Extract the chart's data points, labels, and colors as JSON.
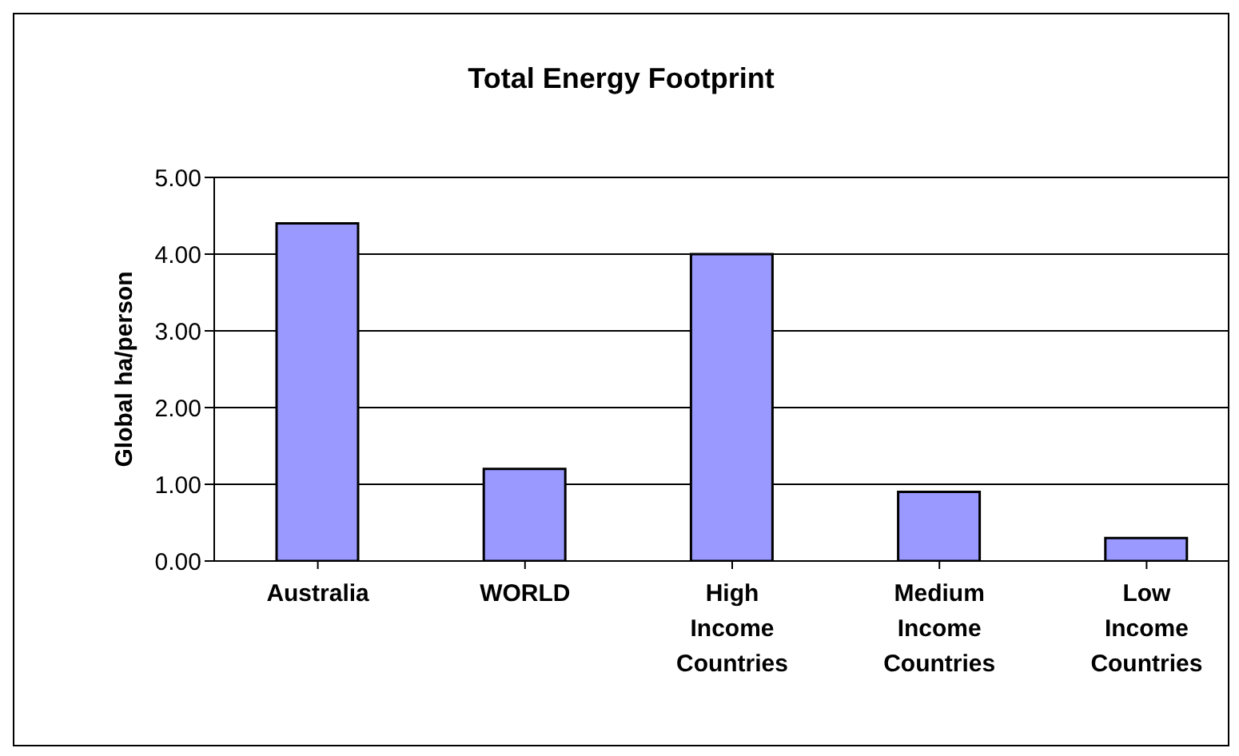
{
  "chart_data": {
    "type": "bar",
    "title": "Total Energy Footprint",
    "ylabel": "Global ha/person",
    "categories": [
      "Australia",
      "WORLD",
      "High Income Countries",
      "Medium Income Countries",
      "Low Income Countries"
    ],
    "values": [
      4.4,
      1.2,
      4.0,
      0.9,
      0.3
    ],
    "color": "#9999ff",
    "ylim": [
      0,
      5
    ],
    "yticks": [
      {
        "value": 0,
        "label": "0.00"
      },
      {
        "value": 1,
        "label": "1.00"
      },
      {
        "value": 2,
        "label": "2.00"
      },
      {
        "value": 3,
        "label": "3.00"
      },
      {
        "value": 4,
        "label": "4.00"
      },
      {
        "value": 5,
        "label": "5.00"
      }
    ],
    "grid": "y",
    "legend": false
  }
}
